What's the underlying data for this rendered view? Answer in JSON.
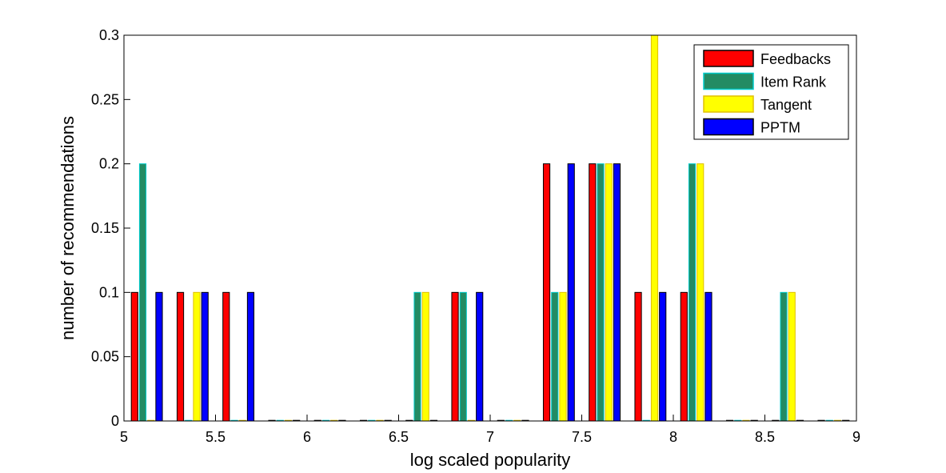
{
  "chart_data": {
    "type": "bar",
    "title": "",
    "xlabel": "log scaled popularity",
    "ylabel": "number of recommendations",
    "xlim": [
      5,
      9
    ],
    "ylim": [
      0,
      0.3
    ],
    "xticks": [
      5,
      5.5,
      6,
      6.5,
      7,
      7.5,
      8,
      8.5,
      9
    ],
    "xtick_labels": [
      "5",
      "5.5",
      "6",
      "6.5",
      "7",
      "7.5",
      "8",
      "8.5",
      "9"
    ],
    "yticks": [
      0,
      0.05,
      0.1,
      0.15,
      0.2,
      0.25,
      0.3
    ],
    "ytick_labels": [
      "0",
      "0.05",
      "0.1",
      "0.15",
      "0.2",
      "0.25",
      "0.3"
    ],
    "grid": false,
    "legend_position": "top-right",
    "bin_centers": [
      5.125,
      5.375,
      5.625,
      5.875,
      6.125,
      6.375,
      6.625,
      6.875,
      7.125,
      7.375,
      7.625,
      7.875,
      8.125,
      8.375,
      8.625,
      8.875
    ],
    "series": [
      {
        "name": "Feedbacks",
        "color": "#ff0000",
        "edge": "#000000",
        "values": [
          0.1,
          0.1,
          0.1,
          0,
          0,
          0,
          0,
          0.1,
          0,
          0.2,
          0.2,
          0.1,
          0.1,
          0,
          0,
          0
        ]
      },
      {
        "name": "Item Rank",
        "color": "#238b63",
        "edge": "#00cccc",
        "values": [
          0.2,
          0,
          0,
          0,
          0,
          0,
          0.1,
          0.1,
          0,
          0.1,
          0.2,
          0,
          0.2,
          0,
          0.1,
          0
        ]
      },
      {
        "name": "Tangent",
        "color": "#ffff00",
        "edge": "#e0c000",
        "values": [
          0,
          0.1,
          0,
          0,
          0,
          0,
          0.1,
          0,
          0,
          0.1,
          0.2,
          0.3,
          0.2,
          0,
          0.1,
          0
        ]
      },
      {
        "name": "PPTM",
        "color": "#0000ff",
        "edge": "#000000",
        "values": [
          0.1,
          0.1,
          0.1,
          0,
          0,
          0,
          0,
          0.1,
          0,
          0.2,
          0.2,
          0.1,
          0.1,
          0,
          0,
          0
        ]
      }
    ]
  }
}
